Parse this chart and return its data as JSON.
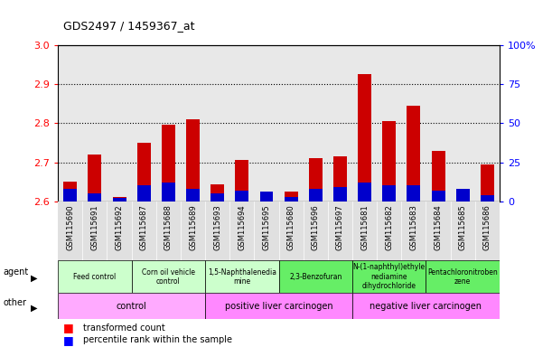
{
  "title": "GDS2497 / 1459367_at",
  "samples": [
    "GSM115690",
    "GSM115691",
    "GSM115692",
    "GSM115687",
    "GSM115688",
    "GSM115689",
    "GSM115693",
    "GSM115694",
    "GSM115695",
    "GSM115680",
    "GSM115696",
    "GSM115697",
    "GSM115681",
    "GSM115682",
    "GSM115683",
    "GSM115684",
    "GSM115685",
    "GSM115686"
  ],
  "transformed_count": [
    2.65,
    2.72,
    2.61,
    2.75,
    2.795,
    2.81,
    2.643,
    2.705,
    2.615,
    2.625,
    2.71,
    2.715,
    2.925,
    2.805,
    2.845,
    2.73,
    2.61,
    2.695
  ],
  "percentile_rank": [
    8,
    5,
    2,
    10,
    12,
    8,
    5,
    7,
    6,
    3,
    8,
    9,
    12,
    10,
    10,
    7,
    8,
    4
  ],
  "ymin": 2.6,
  "ymax": 3.0,
  "yticks_left": [
    2.6,
    2.7,
    2.8,
    2.9,
    3.0
  ],
  "right_yticks_pct": [
    0,
    25,
    50,
    75,
    100
  ],
  "bar_width": 0.55,
  "red_color": "#cc0000",
  "blue_color": "#0000cc",
  "agent_groups": [
    {
      "label": "Feed control",
      "start": 0,
      "end": 3,
      "color": "#ccffcc"
    },
    {
      "label": "Corn oil vehicle\ncontrol",
      "start": 3,
      "end": 6,
      "color": "#ccffcc"
    },
    {
      "label": "1,5-Naphthalenedia\nmine",
      "start": 6,
      "end": 9,
      "color": "#ccffcc"
    },
    {
      "label": "2,3-Benzofuran",
      "start": 9,
      "end": 12,
      "color": "#66ee66"
    },
    {
      "label": "N-(1-naphthyl)ethyle\nnediamine\ndihydrochloride",
      "start": 12,
      "end": 15,
      "color": "#66ee66"
    },
    {
      "label": "Pentachloronitroben\nzene",
      "start": 15,
      "end": 18,
      "color": "#66ee66"
    }
  ],
  "other_groups": [
    {
      "label": "control",
      "start": 0,
      "end": 6,
      "color": "#ffaaff"
    },
    {
      "label": "positive liver carcinogen",
      "start": 6,
      "end": 12,
      "color": "#ff88ff"
    },
    {
      "label": "negative liver carcinogen",
      "start": 12,
      "end": 18,
      "color": "#ff88ff"
    }
  ]
}
